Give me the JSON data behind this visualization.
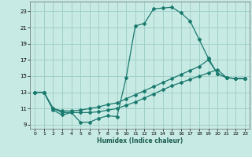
{
  "xlabel": "Humidex (Indice chaleur)",
  "bg_color": "#c8eae4",
  "grid_color": "#a0d0c8",
  "line_color": "#1a7a6e",
  "xlim": [
    -0.5,
    23.5
  ],
  "ylim": [
    8.5,
    24.2
  ],
  "xticks": [
    0,
    1,
    2,
    3,
    4,
    5,
    6,
    7,
    8,
    9,
    10,
    11,
    12,
    13,
    14,
    15,
    16,
    17,
    18,
    19,
    20,
    21,
    22,
    23
  ],
  "yticks": [
    9,
    11,
    13,
    15,
    17,
    19,
    21,
    23
  ],
  "line1_x": [
    0,
    1,
    2,
    3,
    4,
    5,
    6,
    7,
    8,
    9,
    10,
    11,
    12,
    13,
    14,
    15,
    16,
    17,
    18,
    19,
    20,
    21,
    22,
    23
  ],
  "line1_y": [
    13.0,
    13.0,
    10.8,
    10.2,
    10.5,
    9.3,
    9.3,
    9.8,
    10.1,
    10.0,
    14.8,
    21.2,
    21.5,
    23.3,
    23.4,
    23.5,
    22.8,
    21.8,
    19.5,
    17.2,
    15.3,
    14.8,
    14.7,
    14.7
  ],
  "line2_x": [
    0,
    1,
    2,
    3,
    4,
    5,
    6,
    7,
    8,
    9,
    10,
    11,
    12,
    13,
    14,
    15,
    16,
    17,
    18,
    19,
    20,
    21,
    22,
    23
  ],
  "line2_y": [
    13.0,
    13.0,
    11.0,
    10.7,
    10.7,
    10.8,
    11.0,
    11.2,
    11.5,
    11.7,
    12.2,
    12.7,
    13.2,
    13.7,
    14.2,
    14.7,
    15.2,
    15.7,
    16.2,
    17.0,
    15.3,
    14.8,
    14.7,
    14.7
  ],
  "line3_x": [
    0,
    1,
    2,
    3,
    4,
    5,
    6,
    7,
    8,
    9,
    10,
    11,
    12,
    13,
    14,
    15,
    16,
    17,
    18,
    19,
    20,
    21,
    22,
    23
  ],
  "line3_y": [
    13.0,
    13.0,
    11.0,
    10.5,
    10.5,
    10.5,
    10.5,
    10.6,
    10.8,
    11.0,
    11.4,
    11.8,
    12.3,
    12.8,
    13.3,
    13.8,
    14.2,
    14.6,
    15.0,
    15.4,
    15.8,
    14.8,
    14.7,
    14.7
  ]
}
